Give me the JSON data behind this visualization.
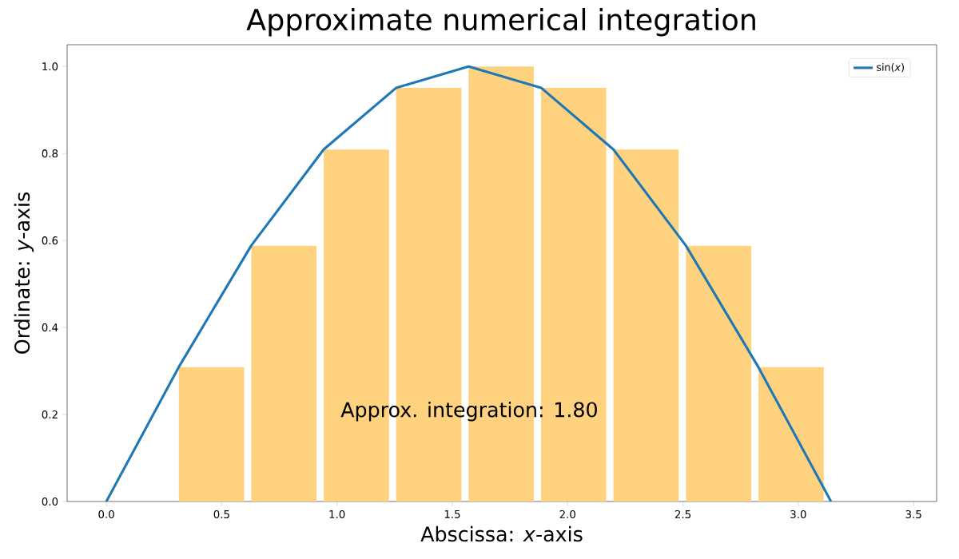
{
  "chart_data": {
    "type": "bar",
    "title": "Approximate numerical integration",
    "xlabel": "Abscissa: *x*-axis",
    "ylabel": "Ordinate: *y*-axis",
    "series": [
      {
        "color": "#ffd27f",
        "x": [
          0.456,
          0.77,
          1.084,
          1.398,
          1.712,
          2.026,
          2.34,
          2.655,
          2.969
        ],
        "values": [
          0.309,
          0.588,
          0.809,
          0.951,
          1.0,
          0.951,
          0.809,
          0.588,
          0.309
        ]
      },
      {
        "type": "line",
        "name": "sin(*x*)",
        "color": "#1f77b4",
        "x": [
          0,
          0.314,
          0.628,
          0.942,
          1.257,
          1.571,
          1.885,
          2.199,
          2.513,
          2.827,
          3.142
        ],
        "values": [
          0,
          0.309,
          0.588,
          0.809,
          0.951,
          1.0,
          0.951,
          0.809,
          0.588,
          0.309,
          0
        ]
      }
    ],
    "annotations": [
      "Approx. integration: 1.80"
    ],
    "xlim": [
      -0.17,
      3.6
    ],
    "ylim": [
      0,
      1.05
    ],
    "xticks": [
      {
        "value": 0,
        "label": "0.0"
      },
      {
        "value": 0.5,
        "label": "0.5"
      },
      {
        "value": 1,
        "label": "1.0"
      },
      {
        "value": 1.5,
        "label": "1.5"
      },
      {
        "value": 2,
        "label": "2.0"
      },
      {
        "value": 2.5,
        "label": "2.5"
      },
      {
        "value": 3,
        "label": "3.0"
      },
      {
        "value": 3.5,
        "label": "3.5"
      }
    ],
    "yticks": [
      {
        "value": 0,
        "label": "0.0"
      },
      {
        "value": 0.2,
        "label": "0.2"
      },
      {
        "value": 0.4,
        "label": "0.4"
      },
      {
        "value": 0.6,
        "label": "0.6"
      },
      {
        "value": 0.8,
        "label": "0.8"
      },
      {
        "value": 1,
        "label": "1.0"
      }
    ],
    "legend": "top right",
    "grid": false
  }
}
